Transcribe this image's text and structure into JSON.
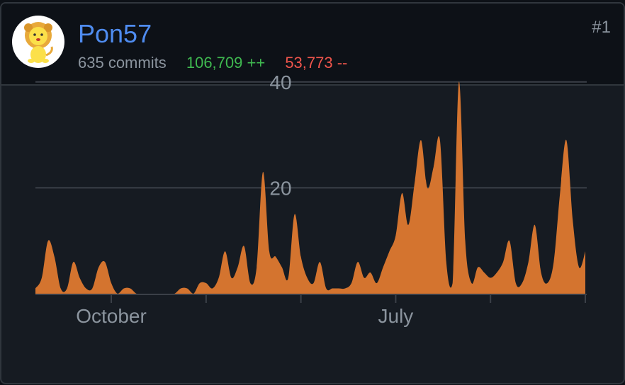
{
  "user": {
    "name": "Pon57",
    "commits_text": "635 commits",
    "additions_text": "106,709 ++",
    "deletions_text": "53,773 --",
    "rank": "#1",
    "avatar_icon": "lion-avatar-icon"
  },
  "colors": {
    "area": "#d4742f",
    "additions": "#3fb950",
    "deletions": "#f0554c",
    "username": "#4f8cf0"
  },
  "chart_data": {
    "type": "area",
    "title": "",
    "xlabel": "",
    "ylabel": "",
    "ylim": [
      0,
      40
    ],
    "yticks": [
      20,
      40
    ],
    "grid": true,
    "xticks": [
      {
        "label": "October",
        "i": 12
      },
      {
        "label": "",
        "i": 27
      },
      {
        "label": "",
        "i": 42
      },
      {
        "label": "July",
        "i": 57
      },
      {
        "label": "",
        "i": 72
      },
      {
        "label": "",
        "i": 87
      }
    ],
    "series": [
      {
        "name": "",
        "values": [
          1,
          3,
          10,
          7,
          1,
          1,
          6,
          3,
          1,
          1,
          5,
          6,
          2,
          0,
          1,
          1,
          0,
          0,
          0,
          0,
          0,
          0,
          0,
          1,
          1,
          0,
          2,
          2,
          1,
          3,
          8,
          3,
          5,
          9,
          2,
          5,
          23,
          8,
          7,
          5,
          3,
          15,
          7,
          3,
          2,
          6,
          1,
          1,
          1,
          1,
          2,
          6,
          3,
          4,
          2,
          5,
          8,
          11,
          19,
          13,
          21,
          29,
          20,
          24,
          29,
          6,
          2,
          40,
          10,
          2,
          5,
          4,
          3,
          4,
          6,
          10,
          2,
          2,
          6,
          13,
          4,
          2,
          6,
          19,
          29,
          14,
          5,
          8
        ]
      }
    ]
  }
}
